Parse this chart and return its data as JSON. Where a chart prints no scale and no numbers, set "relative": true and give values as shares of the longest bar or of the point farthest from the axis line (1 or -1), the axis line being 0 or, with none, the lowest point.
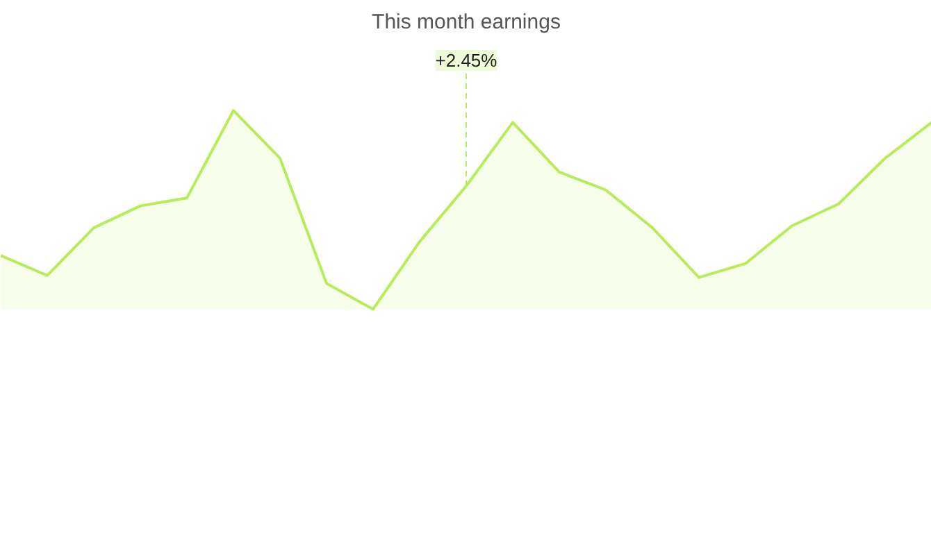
{
  "chart_data": {
    "type": "area",
    "title": "This month earnings",
    "relative": true,
    "categories": [
      null,
      null,
      null,
      null,
      null,
      null,
      null,
      null,
      null,
      null,
      null,
      null,
      null,
      null,
      null,
      null,
      null,
      null,
      null,
      null,
      null
    ],
    "series": [
      {
        "color": "#b8ec5a",
        "values": [
          0.27,
          0.17,
          0.41,
          0.52,
          0.56,
          1.0,
          0.76,
          0.13,
          0,
          0.34,
          0.62,
          0.94,
          0.69,
          0.6,
          0.41,
          0.16,
          0.23,
          0.42,
          0.53,
          0.76,
          0.94
        ]
      }
    ],
    "annotations": [
      {
        "text": "+2.45%",
        "y": 0.62
      }
    ],
    "grid": false
  }
}
